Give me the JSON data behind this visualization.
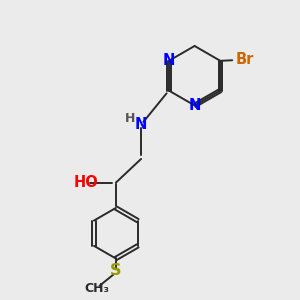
{
  "bg_color": "#ebebeb",
  "bond_color": "#2a2a2a",
  "N_color": "#0000ff",
  "O_color": "#ff0000",
  "Br_color": "#cc6600",
  "S_color": "#999900",
  "H_color": "#555555",
  "figsize": [
    3.0,
    3.0
  ],
  "dpi": 100,
  "xlim": [
    0,
    10
  ],
  "ylim": [
    0,
    10
  ]
}
